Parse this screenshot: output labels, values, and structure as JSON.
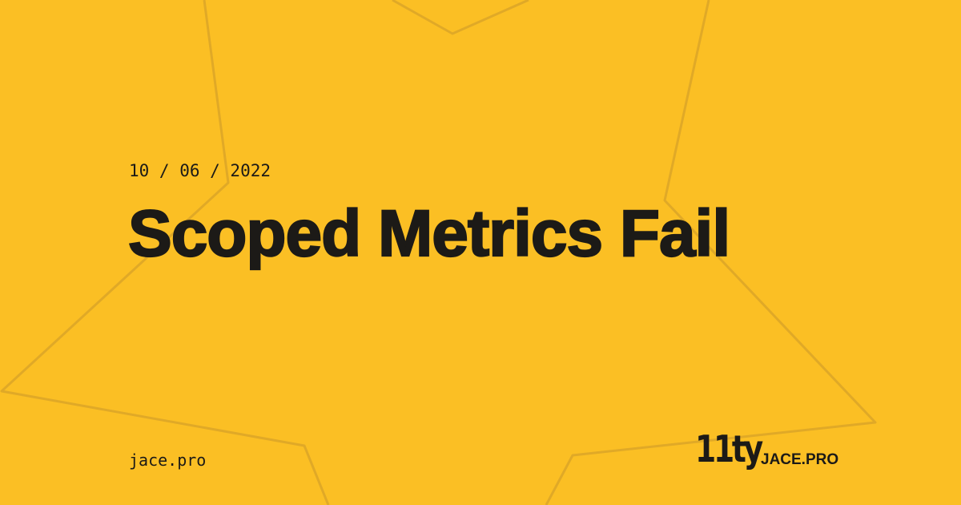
{
  "post": {
    "date": "10 / 06 / 2022",
    "title": "Scoped Metrics Fail"
  },
  "footer": {
    "site_url": "jace.pro",
    "generator_logo": "11ty",
    "brand": "JACE.PRO"
  },
  "colors": {
    "background": "#fbbf24",
    "text": "#1c1a17",
    "star_outline": "#e0a927"
  },
  "decor": {
    "background_shape": "star-outline"
  }
}
